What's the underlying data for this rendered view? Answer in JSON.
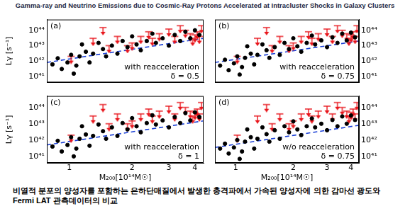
{
  "title": "Gamma-ray and Neutrino Emissions due to Cosmic-Ray Protons Accelerated at Intracluster Shocks in Galaxy Clusters",
  "caption": [
    "비열적 분포의 양성자를 포함하는 은하단매질에서 발생한 충격파에서 가속된 양성자에 의한 감마선 광도와",
    "Fermi LAT 관측데이터의 비교"
  ],
  "chart_data": [
    {
      "type": "scatter",
      "panel_label": "(a)",
      "annotations": [
        "with reacceleration",
        "δ = 0.5"
      ],
      "ylabel": "Lγ [s⁻¹]",
      "log": true,
      "grid": false,
      "tick_labels": "y",
      "xlim": [
        0.78,
        4.4
      ],
      "xticks": [
        1,
        2,
        3,
        4
      ],
      "ylim": [
        4e+40,
        5e+44
      ],
      "yticks": [
        {
          "value": 1e+41,
          "label": "10⁴¹"
        },
        {
          "value": 1e+42,
          "label": "10⁴²"
        },
        {
          "value": 1e+43,
          "label": "10⁴³"
        },
        {
          "value": 1e+44,
          "label": "10⁴⁴"
        }
      ],
      "series": [
        {
          "type": "scatter",
          "color": "#000000",
          "marker": "circle",
          "x": [
            0.83,
            0.88,
            0.92,
            0.98,
            1.02,
            1.05,
            1.08,
            1.12,
            1.15,
            1.2,
            1.25,
            1.3,
            1.38,
            1.45,
            1.5,
            1.6,
            1.7,
            1.8,
            1.9,
            2.0,
            2.1,
            2.2,
            2.35,
            2.5,
            2.6,
            2.8,
            3.0,
            3.2,
            3.4,
            3.6,
            3.8,
            4.0,
            4.2
          ],
          "values": [
            6e+41,
            1.5e+42,
            3e+41,
            8e+41,
            2.5e+42,
            1.5e+41,
            5e+41,
            2e+42,
            1.2e+43,
            4e+42,
            8e+41,
            3e+42,
            1.5e+43,
            6e+42,
            2e+42,
            1e+43,
            3e+42,
            2e+43,
            8e+42,
            4e+43,
            1.2e+43,
            5e+42,
            2e+43,
            6e+43,
            1.5e+43,
            3e+43,
            1e+43,
            5e+43,
            2e+43,
            8e+43,
            3e+43,
            1e+44,
            5e+43
          ]
        },
        {
          "type": "scatter",
          "color": "#e8141a",
          "marker": "upper_limit",
          "x": [
            1.02,
            1.3,
            1.45,
            1.55,
            1.7,
            1.9,
            2.0,
            2.2,
            2.4,
            2.5,
            2.7,
            3.0,
            3.2,
            3.4,
            3.6,
            3.8,
            3.9,
            4.0,
            4.1,
            4.2,
            4.3
          ],
          "values": [
            2e+42,
            3e+43,
            1.5e+44,
            1e+43,
            4e+43,
            1e+43,
            1.5e+43,
            4e+43,
            8e+43,
            3e+43,
            6e+43,
            1.2e+44,
            4e+43,
            2e+44,
            1e+44,
            6e+43,
            3e+43,
            5e+43,
            8e+43,
            4e+43,
            2e+44
          ]
        },
        {
          "type": "line",
          "color": "#1a3fd6",
          "line_style": "dashed",
          "x": [
            0.78,
            4.4
          ],
          "values": [
            8e+41,
            3e+43
          ]
        }
      ]
    },
    {
      "type": "scatter",
      "panel_label": "(b)",
      "annotations": [
        "with reacceleration",
        "δ = 0.75"
      ],
      "log": true,
      "grid": false,
      "tick_labels": "y",
      "xlim": [
        0.78,
        4.4
      ],
      "xticks": [
        1,
        2,
        3,
        4
      ],
      "ylim": [
        4e+40,
        5e+44
      ],
      "yticks": [
        {
          "value": 1e+41,
          "label": "10⁴¹"
        },
        {
          "value": 1e+42,
          "label": "10⁴²"
        },
        {
          "value": 1e+43,
          "label": "10⁴³"
        },
        {
          "value": 1e+44,
          "label": "10⁴⁴"
        }
      ],
      "series": [
        {
          "type": "scatter",
          "color": "#000000",
          "marker": "circle",
          "x": [
            0.83,
            0.88,
            0.92,
            0.98,
            1.02,
            1.05,
            1.08,
            1.12,
            1.15,
            1.2,
            1.25,
            1.3,
            1.38,
            1.45,
            1.5,
            1.6,
            1.7,
            1.8,
            1.9,
            2.0,
            2.1,
            2.2,
            2.35,
            2.5,
            2.6,
            2.8,
            3.0,
            3.2,
            3.4,
            3.6,
            3.8,
            4.0,
            4.2
          ],
          "values": [
            5e+41,
            1.2e+42,
            2.5e+41,
            7e+41,
            2e+42,
            1.3e+41,
            4e+41,
            1.6e+42,
            9e+42,
            3e+42,
            6e+41,
            2.5e+42,
            1.2e+43,
            5e+42,
            1.6e+42,
            8e+42,
            2.5e+42,
            1.5e+43,
            6e+42,
            3e+43,
            9e+42,
            4e+42,
            1.5e+43,
            4.5e+43,
            1.2e+43,
            2.2e+43,
            8e+42,
            3.5e+43,
            1.5e+43,
            6e+43,
            2.2e+43,
            7e+43,
            3.5e+43
          ]
        },
        {
          "type": "scatter",
          "color": "#e8141a",
          "marker": "upper_limit",
          "x": [
            1.02,
            1.3,
            1.45,
            1.55,
            1.7,
            1.9,
            2.0,
            2.2,
            2.4,
            2.5,
            2.7,
            3.0,
            3.2,
            3.4,
            3.6,
            3.8,
            3.9,
            4.0,
            4.1,
            4.2,
            4.3
          ],
          "values": [
            2e+42,
            3e+43,
            1.5e+44,
            1e+43,
            4e+43,
            1e+43,
            1.5e+43,
            4e+43,
            8e+43,
            3e+43,
            6e+43,
            1.2e+44,
            4e+43,
            2e+44,
            1e+44,
            6e+43,
            3e+43,
            5e+43,
            8e+43,
            4e+43,
            2e+44
          ]
        },
        {
          "type": "line",
          "color": "#1a3fd6",
          "line_style": "dashed",
          "x": [
            0.78,
            4.4
          ],
          "values": [
            8e+41,
            2e+43
          ]
        }
      ]
    },
    {
      "type": "scatter",
      "panel_label": "(c)",
      "annotations": [
        "with reacceleration",
        "δ = 1"
      ],
      "xlabel": "M₂₀₀[10¹⁴M☉]",
      "ylabel": "Lγ [s⁻¹]",
      "log": true,
      "grid": false,
      "tick_labels": true,
      "xlim": [
        0.78,
        4.4
      ],
      "xticks": [
        1,
        2,
        3,
        4
      ],
      "ylim": [
        4e+40,
        5e+44
      ],
      "yticks": [
        {
          "value": 1e+41,
          "label": "10⁴¹"
        },
        {
          "value": 1e+42,
          "label": "10⁴²"
        },
        {
          "value": 1e+43,
          "label": "10⁴³"
        },
        {
          "value": 1e+44,
          "label": "10⁴⁴"
        }
      ],
      "series": [
        {
          "type": "scatter",
          "color": "#000000",
          "marker": "circle",
          "x": [
            0.83,
            0.88,
            0.92,
            0.98,
            1.02,
            1.05,
            1.08,
            1.12,
            1.15,
            1.2,
            1.25,
            1.3,
            1.38,
            1.45,
            1.5,
            1.6,
            1.7,
            1.8,
            1.9,
            2.0,
            2.1,
            2.2,
            2.35,
            2.5,
            2.6,
            2.8,
            3.0,
            3.2,
            3.4,
            3.6,
            3.8,
            4.0,
            4.2
          ],
          "values": [
            4e+41,
            9e+41,
            2e+41,
            5e+41,
            1.5e+42,
            1e+41,
            3e+41,
            1.2e+42,
            7e+42,
            2.2e+42,
            4.5e+41,
            1.8e+42,
            9e+42,
            3.5e+42,
            1.2e+42,
            6e+42,
            1.8e+42,
            1.1e+43,
            4.5e+42,
            2.2e+43,
            7e+42,
            3e+42,
            1.1e+43,
            3.3e+43,
            9e+42,
            1.6e+43,
            6e+42,
            2.6e+43,
            1.1e+43,
            4.5e+43,
            1.6e+43,
            5e+43,
            2.6e+43
          ]
        },
        {
          "type": "scatter",
          "color": "#e8141a",
          "marker": "upper_limit",
          "x": [
            1.02,
            1.3,
            1.45,
            1.55,
            1.7,
            1.9,
            2.0,
            2.2,
            2.4,
            2.5,
            2.7,
            3.0,
            3.2,
            3.4,
            3.6,
            3.8,
            3.9,
            4.0,
            4.1,
            4.2,
            4.3
          ],
          "values": [
            2e+42,
            3e+43,
            1.5e+44,
            1e+43,
            4e+43,
            1e+43,
            1.5e+43,
            4e+43,
            8e+43,
            3e+43,
            6e+43,
            1.2e+44,
            4e+43,
            2e+44,
            1e+44,
            6e+43,
            3e+43,
            5e+43,
            8e+43,
            4e+43,
            2e+44
          ]
        },
        {
          "type": "line",
          "color": "#1a3fd6",
          "line_style": "dashed",
          "x": [
            0.78,
            4.4
          ],
          "values": [
            5e+41,
            1.5e+43
          ]
        }
      ]
    },
    {
      "type": "scatter",
      "panel_label": "(d)",
      "annotations": [
        "w/o reacceleration",
        "δ = 0.75"
      ],
      "xlabel": "M₂₀₀[10¹⁴M☉]",
      "log": true,
      "grid": false,
      "tick_labels": true,
      "xlim": [
        0.78,
        4.4
      ],
      "xticks": [
        1,
        2,
        3,
        4
      ],
      "ylim": [
        4e+40,
        5e+44
      ],
      "yticks": [
        {
          "value": 1e+41,
          "label": "10⁴¹"
        },
        {
          "value": 1e+42,
          "label": "10⁴²"
        },
        {
          "value": 1e+43,
          "label": "10⁴³"
        },
        {
          "value": 1e+44,
          "label": "10⁴⁴"
        }
      ],
      "series": [
        {
          "type": "scatter",
          "color": "#000000",
          "marker": "circle",
          "x": [
            0.83,
            0.88,
            0.92,
            0.98,
            1.02,
            1.05,
            1.08,
            1.12,
            1.15,
            1.2,
            1.25,
            1.3,
            1.38,
            1.45,
            1.5,
            1.6,
            1.7,
            1.8,
            1.9,
            2.0,
            2.1,
            2.2,
            2.35,
            2.5,
            2.6,
            2.8,
            3.0,
            3.2,
            3.4,
            3.6,
            3.8,
            4.0,
            4.2
          ],
          "values": [
            3e+41,
            6e+41,
            1.5e+41,
            3.5e+41,
            1e+42,
            7e+40,
            2e+41,
            8e+41,
            4.5e+42,
            1.5e+42,
            3e+41,
            1.2e+42,
            6e+42,
            2.3e+42,
            8e+41,
            4e+42,
            1.2e+42,
            7e+42,
            3e+42,
            1.4e+43,
            4.5e+42,
            2e+42,
            7e+42,
            2.1e+43,
            6e+42,
            1e+43,
            4e+42,
            1.7e+43,
            7e+42,
            2.8e+43,
            1e+43,
            3.2e+43,
            1.7e+43
          ]
        },
        {
          "type": "scatter",
          "color": "#e8141a",
          "marker": "upper_limit",
          "x": [
            1.02,
            1.3,
            1.45,
            1.55,
            1.7,
            1.9,
            2.0,
            2.2,
            2.4,
            2.5,
            2.7,
            3.0,
            3.2,
            3.4,
            3.6,
            3.8,
            3.9,
            4.0,
            4.1,
            4.2,
            4.3
          ],
          "values": [
            2e+42,
            3e+43,
            1.5e+44,
            1e+43,
            4e+43,
            1e+43,
            1.5e+43,
            4e+43,
            8e+43,
            3e+43,
            6e+43,
            1.2e+44,
            4e+43,
            2e+44,
            1e+44,
            6e+43,
            3e+43,
            5e+43,
            8e+43,
            4e+43,
            2e+44
          ]
        },
        {
          "type": "line",
          "color": "#1a3fd6",
          "line_style": "dashed",
          "x": [
            0.78,
            4.4
          ],
          "values": [
            3.5e+41,
            8e+42
          ]
        }
      ]
    }
  ]
}
